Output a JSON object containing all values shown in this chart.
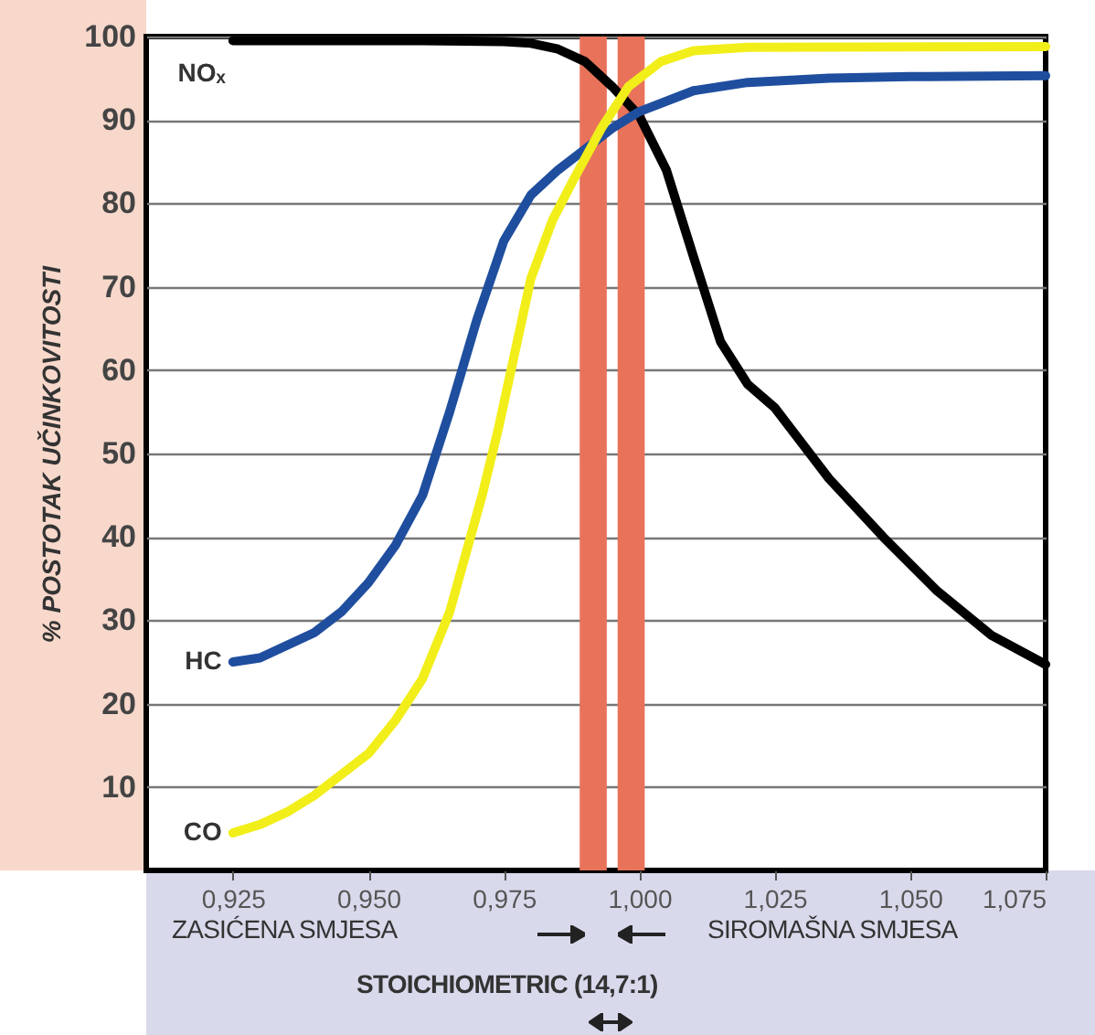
{
  "chart_data": {
    "type": "line",
    "ylabel": "% POSTOTAK UČINKOVITOSTI",
    "xlim": [
      0.909,
      1.075
    ],
    "xticks": [
      {
        "value": 0.925,
        "label": "0,925"
      },
      {
        "value": 0.95,
        "label": "0,950"
      },
      {
        "value": 0.975,
        "label": "0,975"
      },
      {
        "value": 1.0,
        "label": "1,000"
      },
      {
        "value": 1.025,
        "label": "1,025"
      },
      {
        "value": 1.05,
        "label": "1,050"
      },
      {
        "value": 1.075,
        "label": "1,075"
      }
    ],
    "ylim": [
      0,
      100
    ],
    "yticks": [
      10,
      20,
      30,
      40,
      50,
      60,
      70,
      80,
      90,
      100
    ],
    "grid": "y",
    "line_style": "solid",
    "marker": "none",
    "series": [
      {
        "name": "NOₓ",
        "color": "#000000",
        "x": [
          0.925,
          0.94,
          0.96,
          0.975,
          0.98,
          0.985,
          0.99,
          0.995,
          1.0,
          1.005,
          1.01,
          1.015,
          1.02,
          1.025,
          1.035,
          1.045,
          1.055,
          1.065,
          1.075
        ],
        "values": [
          99.5,
          99.5,
          99.5,
          99.4,
          99.2,
          98.5,
          97,
          94,
          90.5,
          84,
          73.6,
          63.4,
          58.3,
          55.5,
          47,
          40,
          33.5,
          28.2,
          24.7
        ]
      },
      {
        "name": "HC",
        "color": "#1f4e9e",
        "x": [
          0.925,
          0.93,
          0.935,
          0.94,
          0.945,
          0.95,
          0.955,
          0.96,
          0.965,
          0.97,
          0.975,
          0.98,
          0.985,
          0.99,
          0.995,
          1.0,
          1.01,
          1.02,
          1.035,
          1.05,
          1.075
        ],
        "values": [
          25,
          25.5,
          27,
          28.5,
          31,
          34.5,
          39,
          45,
          55,
          66,
          75.5,
          81,
          84,
          86.5,
          89,
          91,
          93.5,
          94.5,
          95,
          95.2,
          95.3
        ]
      },
      {
        "name": "CO",
        "color": "#f2ee1a",
        "x": [
          0.925,
          0.93,
          0.935,
          0.94,
          0.945,
          0.95,
          0.955,
          0.96,
          0.965,
          0.968,
          0.971,
          0.974,
          0.977,
          0.98,
          0.984,
          0.988,
          0.993,
          0.998,
          1.004,
          1.01,
          1.02,
          1.075
        ],
        "values": [
          4.5,
          5.5,
          7,
          9,
          11.5,
          14,
          18,
          23,
          31,
          38,
          45,
          53,
          62,
          71,
          78,
          83,
          89,
          94,
          97,
          98.3,
          98.7,
          98.8
        ]
      }
    ],
    "bands": [
      {
        "axis": "x",
        "from": 0.989,
        "to": 0.994,
        "color": "#e8735a"
      },
      {
        "axis": "x",
        "from": 0.996,
        "to": 1.001,
        "color": "#e8735a"
      }
    ],
    "annotations": [
      "ZASIĆENA SMJESA",
      "SIROMAŠNA SMJESA",
      "STOICHIOMETRIC (14,7:1)"
    ]
  }
}
